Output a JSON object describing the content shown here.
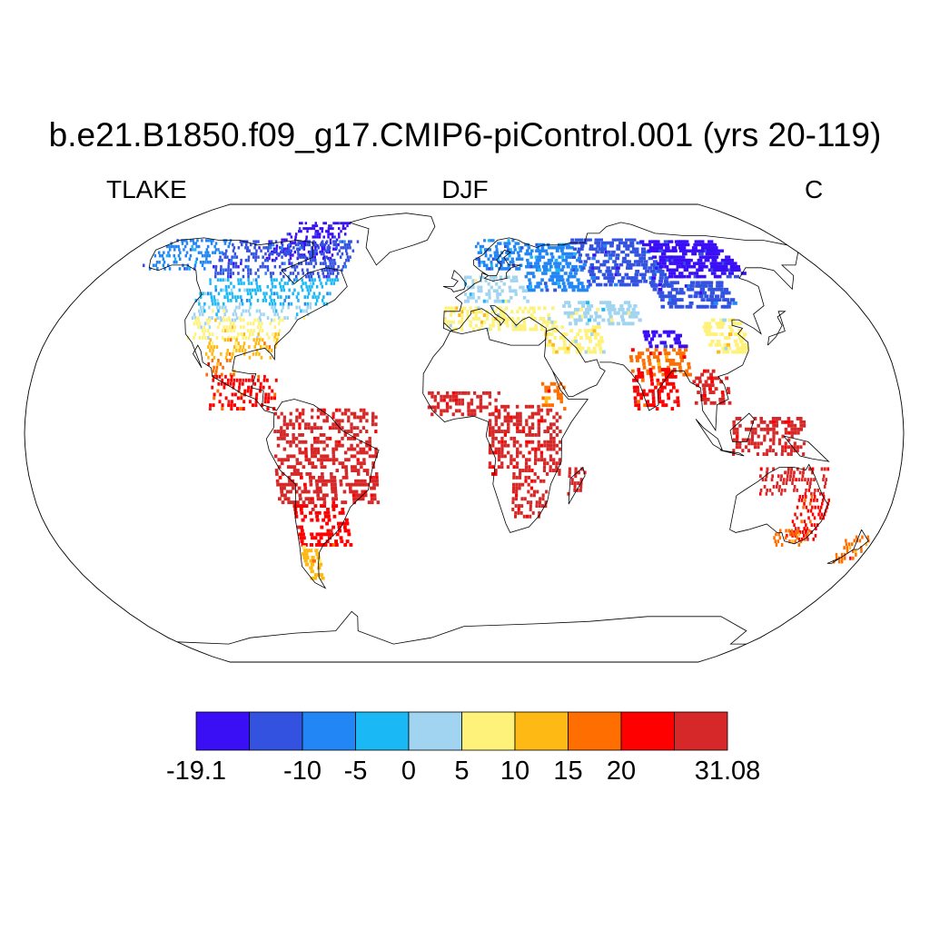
{
  "title": "b.e21.B1850.f09_g17.CMIP6-piControl.001 (yrs 20-119)",
  "left_label": "TLAKE",
  "center_label": "DJF",
  "right_label": "C",
  "colorbar": {
    "colors": [
      "#3b0ff5",
      "#3352e0",
      "#2386f5",
      "#1ab9f5",
      "#a0d4f0",
      "#fff27a",
      "#ffb914",
      "#ff6e00",
      "#ff0000",
      "#d62828"
    ],
    "labels": [
      {
        "text": "-19.1",
        "pos": 0
      },
      {
        "text": "-10",
        "pos": 2
      },
      {
        "text": "-5",
        "pos": 3
      },
      {
        "text": "0",
        "pos": 4
      },
      {
        "text": "5",
        "pos": 5
      },
      {
        "text": "10",
        "pos": 6
      },
      {
        "text": "15",
        "pos": 7
      },
      {
        "text": "20",
        "pos": 8
      },
      {
        "text": "31.08",
        "pos": 10
      }
    ]
  },
  "regions": [
    {
      "name": "canada-arctic",
      "lon": [
        -105,
        -70
      ],
      "lat": [
        62,
        78
      ],
      "bin": 0
    },
    {
      "name": "canada-north",
      "lon": [
        -130,
        -60
      ],
      "lat": [
        55,
        70
      ],
      "bin": 1
    },
    {
      "name": "alaska",
      "lon": [
        -165,
        -130
      ],
      "lat": [
        58,
        70
      ],
      "bin": 2
    },
    {
      "name": "canada-south",
      "lon": [
        -125,
        -62
      ],
      "lat": [
        45,
        55
      ],
      "bin": 3
    },
    {
      "name": "us-north",
      "lon": [
        -122,
        -70
      ],
      "lat": [
        40,
        45
      ],
      "bin": 4
    },
    {
      "name": "us-mid",
      "lon": [
        -120,
        -80
      ],
      "lat": [
        33,
        40
      ],
      "bin": 5
    },
    {
      "name": "us-south",
      "lon": [
        -110,
        -80
      ],
      "lat": [
        26,
        33
      ],
      "bin": 6
    },
    {
      "name": "mexico",
      "lon": [
        -108,
        -96
      ],
      "lat": [
        20,
        26
      ],
      "bin": 7
    },
    {
      "name": "central-america",
      "lon": [
        -105,
        -78
      ],
      "lat": [
        8,
        20
      ],
      "bin": 8
    },
    {
      "name": "south-america",
      "lon": [
        -78,
        -36
      ],
      "lat": [
        -25,
        8
      ],
      "bin": 9
    },
    {
      "name": "south-america-south",
      "lon": [
        -72,
        -50
      ],
      "lat": [
        -40,
        -25
      ],
      "bin": 8
    },
    {
      "name": "patagonia",
      "lon": [
        -73,
        -66
      ],
      "lat": [
        -52,
        -40
      ],
      "bin": 6
    },
    {
      "name": "scandinavia",
      "lon": [
        6,
        30
      ],
      "lat": [
        58,
        70
      ],
      "bin": 2
    },
    {
      "name": "russia-west",
      "lon": [
        30,
        60
      ],
      "lat": [
        50,
        68
      ],
      "bin": 2
    },
    {
      "name": "europe-central",
      "lon": [
        0,
        30
      ],
      "lat": [
        46,
        56
      ],
      "bin": 4
    },
    {
      "name": "mediterranean",
      "lon": [
        -9,
        40
      ],
      "lat": [
        36,
        44
      ],
      "bin": 5
    },
    {
      "name": "siberia-west",
      "lon": [
        60,
        100
      ],
      "lat": [
        52,
        70
      ],
      "bin": 1
    },
    {
      "name": "siberia-east",
      "lon": [
        100,
        140
      ],
      "lat": [
        55,
        70
      ],
      "bin": 0
    },
    {
      "name": "mongolia",
      "lon": [
        90,
        125
      ],
      "lat": [
        44,
        54
      ],
      "bin": 1
    },
    {
      "name": "tibet",
      "lon": [
        78,
        95
      ],
      "lat": [
        30,
        36
      ],
      "bin": 0
    },
    {
      "name": "central-asia",
      "lon": [
        45,
        80
      ],
      "lat": [
        38,
        46
      ],
      "bin": 4
    },
    {
      "name": "middle-east",
      "lon": [
        35,
        60
      ],
      "lat": [
        28,
        38
      ],
      "bin": 5
    },
    {
      "name": "china-east",
      "lon": [
        105,
        122
      ],
      "lat": [
        28,
        40
      ],
      "bin": 5
    },
    {
      "name": "south-asia",
      "lon": [
        70,
        95
      ],
      "lat": [
        20,
        30
      ],
      "bin": 7
    },
    {
      "name": "india",
      "lon": [
        70,
        88
      ],
      "lat": [
        8,
        22
      ],
      "bin": 8
    },
    {
      "name": "southeast-asia",
      "lon": [
        95,
        110
      ],
      "lat": [
        10,
        22
      ],
      "bin": 9
    },
    {
      "name": "indonesia",
      "lon": [
        110,
        140
      ],
      "lat": [
        -8,
        5
      ],
      "bin": 9
    },
    {
      "name": "west-africa",
      "lon": [
        -15,
        15
      ],
      "lat": [
        6,
        14
      ],
      "bin": 9
    },
    {
      "name": "central-africa",
      "lon": [
        10,
        40
      ],
      "lat": [
        -15,
        10
      ],
      "bin": 9
    },
    {
      "name": "southern-africa",
      "lon": [
        20,
        35
      ],
      "lat": [
        -30,
        -15
      ],
      "bin": 9
    },
    {
      "name": "east-africa-north",
      "lon": [
        32,
        42
      ],
      "lat": [
        8,
        18
      ],
      "bin": 7
    },
    {
      "name": "madagascar",
      "lon": [
        43,
        50
      ],
      "lat": [
        -22,
        -12
      ],
      "bin": 9
    },
    {
      "name": "australia-north",
      "lon": [
        122,
        150
      ],
      "lat": [
        -22,
        -12
      ],
      "bin": 9
    },
    {
      "name": "australia-east",
      "lon": [
        140,
        153
      ],
      "lat": [
        -38,
        -22
      ],
      "bin": 8
    },
    {
      "name": "australia-south",
      "lon": [
        135,
        150
      ],
      "lat": [
        -40,
        -34
      ],
      "bin": 7
    },
    {
      "name": "new-zealand",
      "lon": [
        167,
        178
      ],
      "lat": [
        -46,
        -36
      ],
      "bin": 7
    }
  ]
}
